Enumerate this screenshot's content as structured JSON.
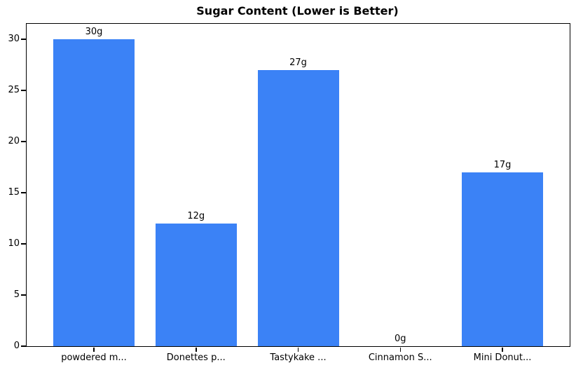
{
  "chart_data": {
    "type": "bar",
    "title": "Sugar Content (Lower is Better)",
    "categories": [
      "powdered m...",
      "Donettes p...",
      "Tastykake ...",
      "Cinnamon S...",
      "Mini Donut..."
    ],
    "values": [
      30,
      12,
      27,
      0,
      17
    ],
    "bar_labels": [
      "30g",
      "12g",
      "27g",
      "0g",
      "17g"
    ],
    "yticks": [
      0,
      5,
      10,
      15,
      20,
      25,
      30
    ],
    "ylim": [
      0,
      31.5
    ],
    "xlabel": "",
    "ylabel": "",
    "bar_color": "#3b82f6",
    "grid": false,
    "legend_position": "none",
    "background_color": "#ffffff",
    "frame_color": "#000000"
  }
}
